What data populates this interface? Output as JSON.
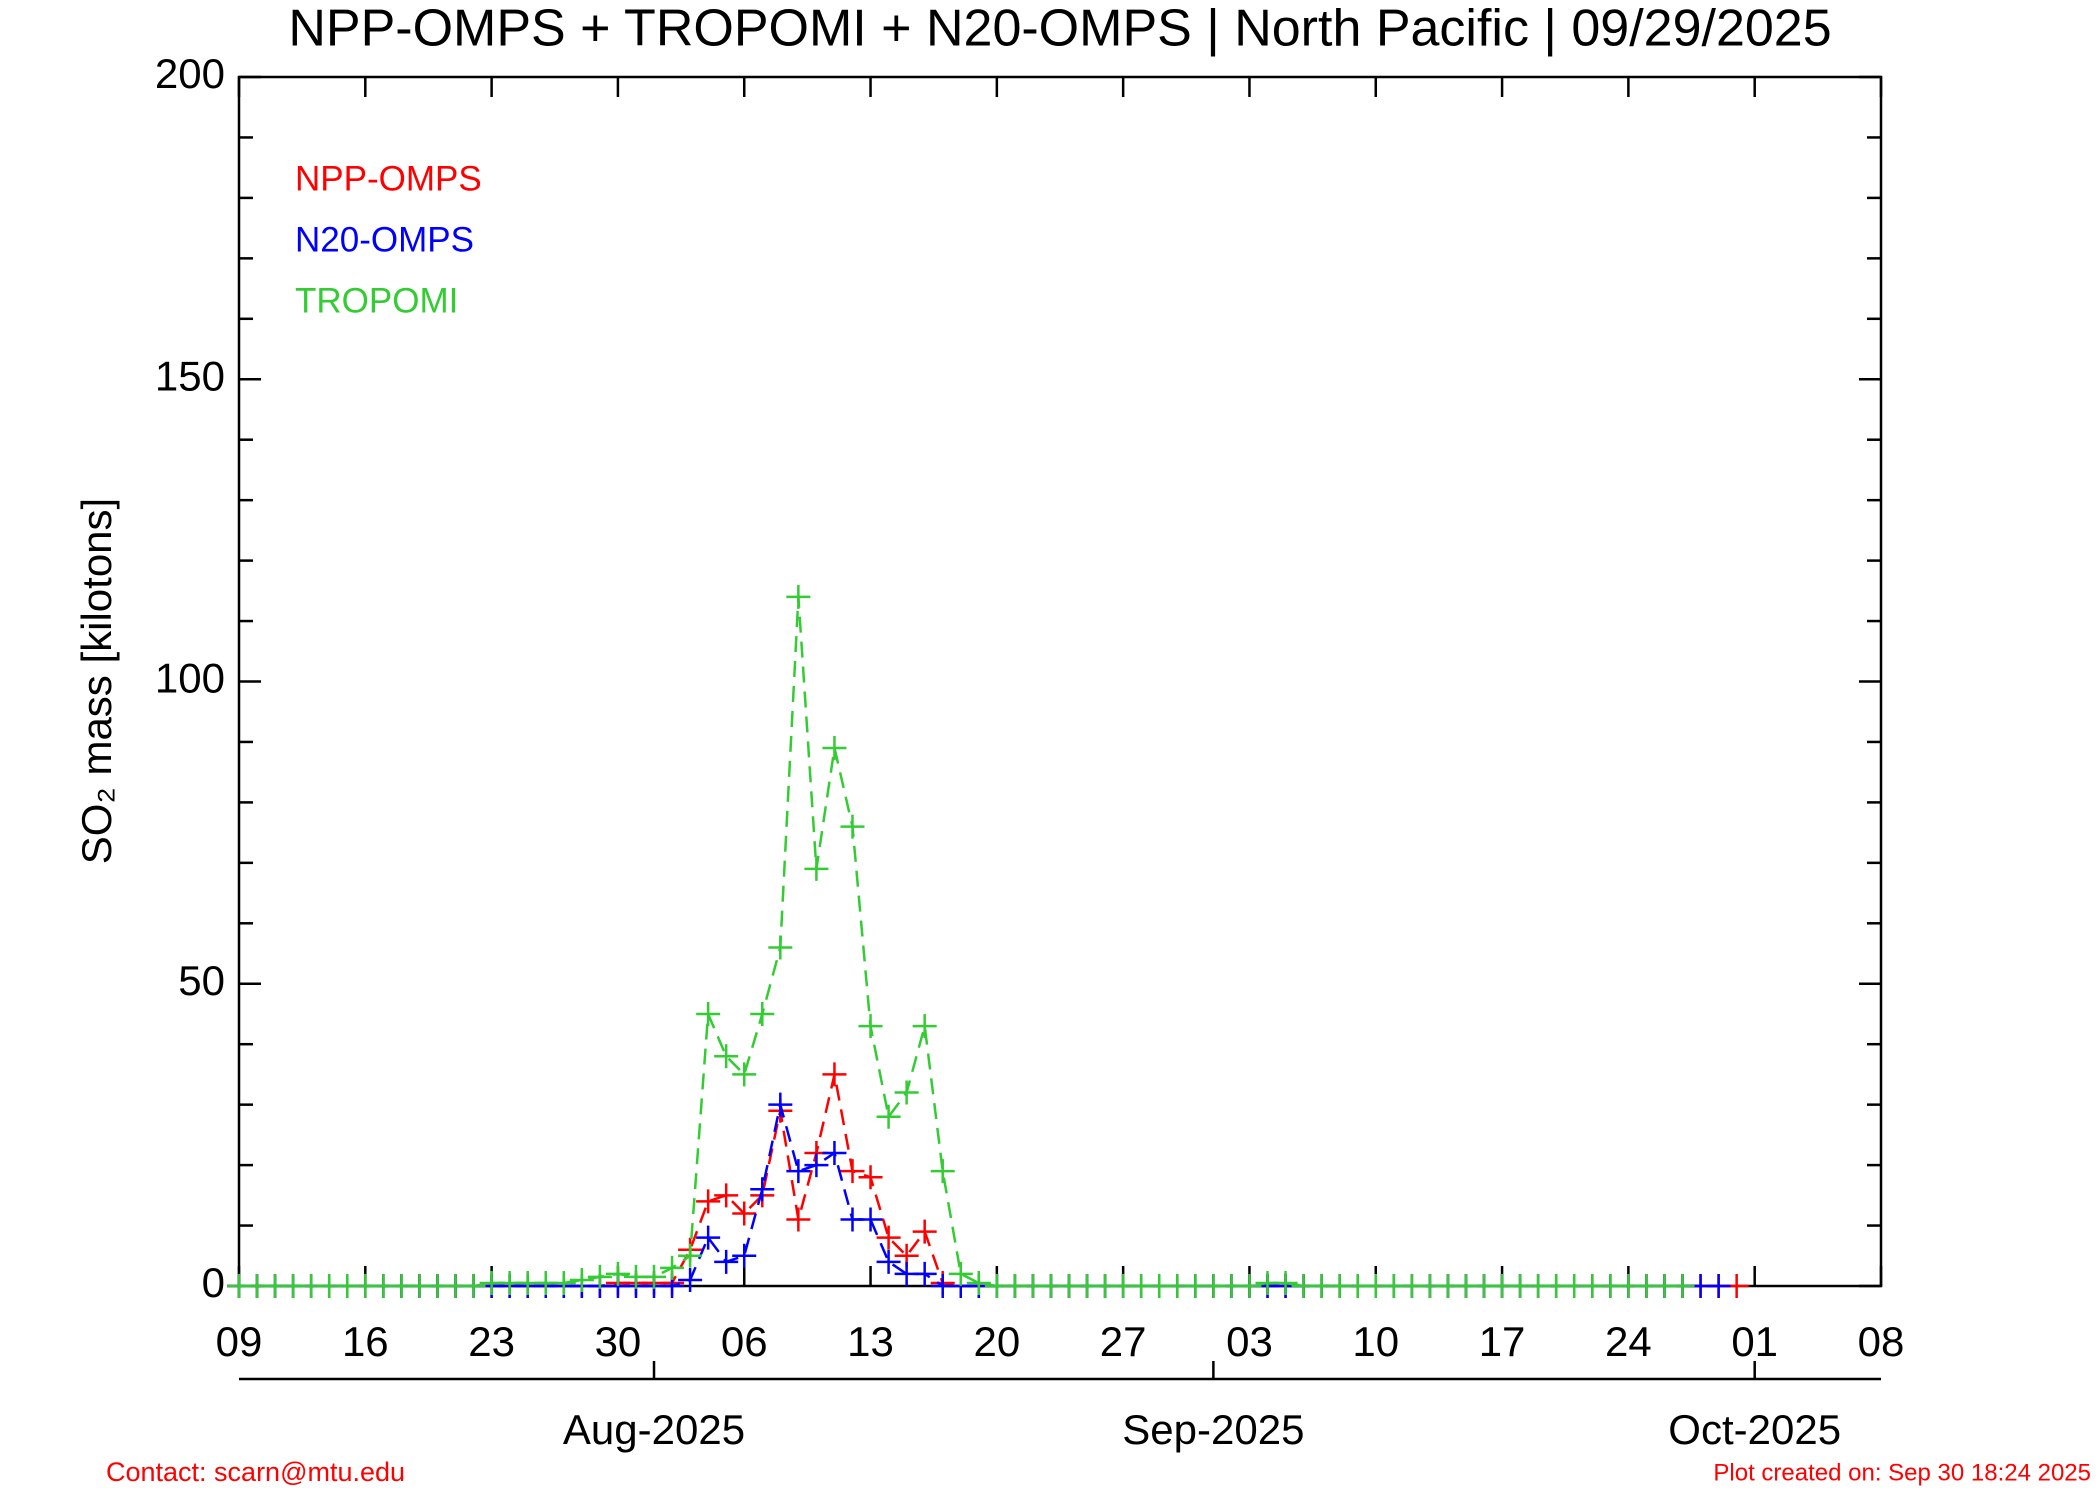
{
  "chart_data": {
    "type": "line",
    "title": "NPP-OMPS + TROPOMI + N20-OMPS | North Pacific | 09/29/2025",
    "y_label": "SO₂ mass [kilotons]",
    "x": [
      "2025-07-09",
      "2025-07-10",
      "2025-07-11",
      "2025-07-12",
      "2025-07-13",
      "2025-07-14",
      "2025-07-15",
      "2025-07-16",
      "2025-07-17",
      "2025-07-18",
      "2025-07-19",
      "2025-07-20",
      "2025-07-21",
      "2025-07-22",
      "2025-07-23",
      "2025-07-24",
      "2025-07-25",
      "2025-07-26",
      "2025-07-27",
      "2025-07-28",
      "2025-07-29",
      "2025-07-30",
      "2025-07-31",
      "2025-08-01",
      "2025-08-02",
      "2025-08-03",
      "2025-08-04",
      "2025-08-05",
      "2025-08-06",
      "2025-08-07",
      "2025-08-08",
      "2025-08-09",
      "2025-08-10",
      "2025-08-11",
      "2025-08-12",
      "2025-08-13",
      "2025-08-14",
      "2025-08-15",
      "2025-08-16",
      "2025-08-17",
      "2025-08-18",
      "2025-08-19",
      "2025-08-20",
      "2025-08-21",
      "2025-08-22",
      "2025-08-23",
      "2025-08-24",
      "2025-08-25",
      "2025-08-26",
      "2025-08-27",
      "2025-08-28",
      "2025-08-29",
      "2025-08-30",
      "2025-08-31",
      "2025-09-01",
      "2025-09-02",
      "2025-09-03",
      "2025-09-04",
      "2025-09-05",
      "2025-09-06",
      "2025-09-07",
      "2025-09-08",
      "2025-09-09",
      "2025-09-10",
      "2025-09-11",
      "2025-09-12",
      "2025-09-13",
      "2025-09-14",
      "2025-09-15",
      "2025-09-16",
      "2025-09-17",
      "2025-09-18",
      "2025-09-19",
      "2025-09-20",
      "2025-09-21",
      "2025-09-22",
      "2025-09-23",
      "2025-09-24",
      "2025-09-25",
      "2025-09-26",
      "2025-09-27",
      "2025-09-28",
      "2025-09-29",
      "2025-09-30"
    ],
    "series": [
      {
        "name": "NPP-OMPS",
        "color": "#ff0000",
        "values": [
          0,
          0,
          0,
          0,
          0,
          0,
          0,
          0,
          0,
          0,
          0,
          0,
          0,
          0,
          0,
          0,
          0,
          0,
          0,
          0,
          0,
          0.5,
          0.5,
          0.5,
          0.5,
          6,
          14,
          15,
          12,
          15,
          29,
          11,
          22,
          35,
          19,
          18,
          8,
          5,
          9,
          0.5,
          0,
          0,
          0,
          0,
          0,
          0,
          0,
          0,
          0,
          0,
          0,
          0,
          0,
          0,
          0,
          0,
          0,
          0,
          0,
          0,
          0,
          0,
          0,
          0,
          0,
          0,
          0,
          0,
          0,
          0,
          0,
          0,
          0,
          0,
          0,
          0,
          0,
          0,
          0,
          0,
          0,
          0,
          0,
          0
        ]
      },
      {
        "name": "N20-OMPS",
        "color": "#0000ff",
        "values": [
          0,
          0,
          0,
          0,
          0,
          0,
          0,
          0,
          0,
          0,
          0,
          0,
          0,
          0,
          0,
          0,
          0,
          0,
          0,
          0,
          0,
          0,
          0,
          0,
          0,
          1,
          8,
          4,
          5,
          16,
          30,
          19,
          20,
          22,
          11,
          11,
          4,
          2,
          2,
          0,
          0,
          0,
          0,
          0,
          0,
          0,
          0,
          0,
          0,
          0,
          0,
          0,
          0,
          0,
          0,
          0,
          0,
          0,
          0,
          0,
          0,
          0,
          0,
          0,
          0,
          0,
          0,
          0,
          0,
          0,
          0,
          0,
          0,
          0,
          0,
          0,
          0,
          0,
          0,
          0,
          0,
          0,
          0,
          null
        ]
      },
      {
        "name": "TROPOMI",
        "color": "#33cc33",
        "values": [
          0,
          0,
          0,
          0,
          0,
          0,
          0,
          0,
          0,
          0,
          0,
          0,
          0,
          0,
          0.5,
          0.5,
          0.5,
          0.5,
          0.5,
          1,
          1.5,
          2,
          1.5,
          1.5,
          3,
          5,
          45,
          38,
          35,
          45,
          56,
          114,
          69,
          89,
          76,
          43,
          28,
          32,
          43,
          19,
          2,
          0.5,
          0,
          0,
          0,
          0,
          0,
          0,
          0,
          0,
          0,
          0,
          0,
          0,
          0,
          0,
          0,
          0.5,
          0.5,
          0,
          0,
          0,
          0,
          0,
          0,
          0,
          0,
          0,
          0,
          0,
          0,
          0,
          0,
          0,
          0,
          0,
          0,
          0,
          0,
          0,
          0,
          null,
          null,
          null
        ]
      }
    ],
    "xlim": [
      "2025-07-09",
      "2025-10-08"
    ],
    "xticks": [
      {
        "value": "2025-07-09",
        "label": "09"
      },
      {
        "value": "2025-07-16",
        "label": "16"
      },
      {
        "value": "2025-07-23",
        "label": "23"
      },
      {
        "value": "2025-07-30",
        "label": "30"
      },
      {
        "value": "2025-08-06",
        "label": "06"
      },
      {
        "value": "2025-08-13",
        "label": "13"
      },
      {
        "value": "2025-08-20",
        "label": "20"
      },
      {
        "value": "2025-08-27",
        "label": "27"
      },
      {
        "value": "2025-09-03",
        "label": "03"
      },
      {
        "value": "2025-09-10",
        "label": "10"
      },
      {
        "value": "2025-09-17",
        "label": "17"
      },
      {
        "value": "2025-09-24",
        "label": "24"
      },
      {
        "value": "2025-10-01",
        "label": "01"
      },
      {
        "value": "2025-10-08",
        "label": "08"
      }
    ],
    "month_ticks": [
      {
        "value": "2025-08-01",
        "label": "Aug-2025"
      },
      {
        "value": "2025-09-01",
        "label": "Sep-2025"
      },
      {
        "value": "2025-10-01",
        "label": "Oct-2025"
      }
    ],
    "ylim": [
      0,
      200
    ],
    "yticks": [
      0,
      50,
      100,
      150,
      200
    ],
    "yminorticks": [
      10,
      20,
      30,
      40,
      60,
      70,
      80,
      90,
      110,
      120,
      130,
      140,
      160,
      170,
      180,
      190
    ],
    "legend": "upper-left",
    "footer_left": "Contact: scarn@mtu.edu",
    "footer_right": "Plot created on: Sep 30 18:24 2025"
  }
}
